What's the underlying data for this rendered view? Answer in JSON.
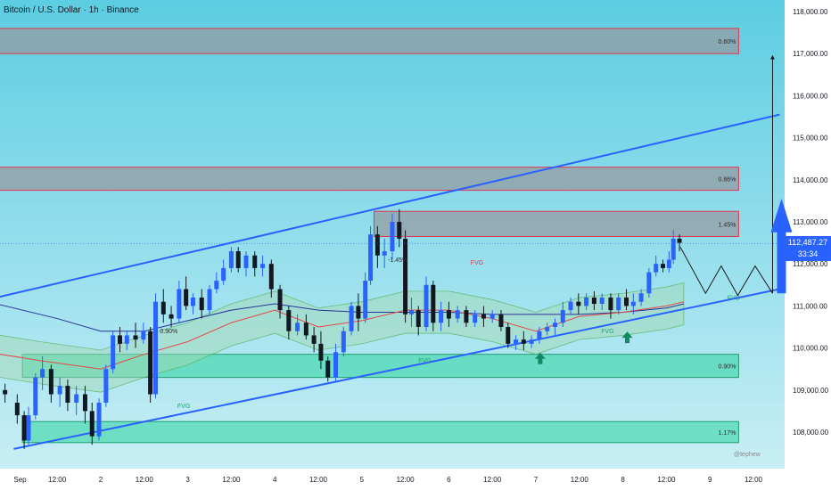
{
  "header": {
    "title": "Bitcoin / U.S. Dollar · 1h · Binance"
  },
  "price_tag": {
    "price": "112,487.27",
    "countdown": "33:34"
  },
  "watermark": "@tephew",
  "colors": {
    "background": "#58c8e0",
    "up_candle": "#2962ff",
    "down_candle": "#131722",
    "channel_line": "#2962ff",
    "resistance_zone": "#9598a1",
    "resistance_border": "#e0364a",
    "support_zone": "#2bd69c",
    "cloud": "#a5d8b0",
    "ma_blue": "#283593",
    "ma_red": "#e34a4a",
    "projection_arrow": "#2962ff"
  },
  "chart_data": {
    "type": "candlestick",
    "title": "Bitcoin / U.S. Dollar · 1h · Binance",
    "ylim": [
      107400,
      118400
    ],
    "y_ticks": [
      108000,
      109000,
      110000,
      111000,
      112000,
      113000,
      114000,
      115000,
      116000,
      117000,
      118000
    ],
    "y_tick_labels": [
      "108,000.00",
      "109,000.00",
      "110,000.00",
      "111,000.00",
      "112,000.00",
      "113,000.00",
      "114,000.00",
      "115,000.00",
      "116,000.00",
      "117,000.00",
      "118,000.00"
    ],
    "x_ticks": [
      {
        "label": "Sep",
        "day": 0.0
      },
      {
        "label": "12:00",
        "day": 0.5
      },
      {
        "label": "2",
        "day": 1.0
      },
      {
        "label": "12:00",
        "day": 1.5
      },
      {
        "label": "3",
        "day": 2.0
      },
      {
        "label": "12:00",
        "day": 2.5
      },
      {
        "label": "4",
        "day": 3.0
      },
      {
        "label": "12:00",
        "day": 3.5
      },
      {
        "label": "5",
        "day": 4.0
      },
      {
        "label": "12:00",
        "day": 4.5
      },
      {
        "label": "6",
        "day": 5.0
      },
      {
        "label": "12:00",
        "day": 5.5
      },
      {
        "label": "7",
        "day": 6.0
      },
      {
        "label": "12:00",
        "day": 6.5
      },
      {
        "label": "8",
        "day": 7.0
      },
      {
        "label": "12:00",
        "day": 7.5
      },
      {
        "label": "9",
        "day": 8.0
      },
      {
        "label": "12:00",
        "day": 8.5
      }
    ],
    "candles": [
      {
        "day": -0.1,
        "o": 109000,
        "h": 109150,
        "c": 108900,
        "l": 108700
      },
      {
        "day": 0.04,
        "o": 108700,
        "h": 108900,
        "c": 108400,
        "l": 108200
      },
      {
        "day": 0.12,
        "o": 108400,
        "h": 108500,
        "c": 107800,
        "l": 107600
      },
      {
        "day": 0.17,
        "o": 107800,
        "h": 108600,
        "c": 108400,
        "l": 107700
      },
      {
        "day": 0.25,
        "o": 108400,
        "h": 109400,
        "c": 109300,
        "l": 108300
      },
      {
        "day": 0.33,
        "o": 109300,
        "h": 109800,
        "c": 109500,
        "l": 109000
      },
      {
        "day": 0.43,
        "o": 109500,
        "h": 109600,
        "c": 108900,
        "l": 108700
      },
      {
        "day": 0.53,
        "o": 108900,
        "h": 109300,
        "c": 109100,
        "l": 108600
      },
      {
        "day": 0.62,
        "o": 109100,
        "h": 109250,
        "c": 108700,
        "l": 108500
      },
      {
        "day": 0.72,
        "o": 108700,
        "h": 109100,
        "c": 108900,
        "l": 108400
      },
      {
        "day": 0.82,
        "o": 108900,
        "h": 109100,
        "c": 108500,
        "l": 108200
      },
      {
        "day": 0.9,
        "o": 108500,
        "h": 108700,
        "c": 107900,
        "l": 107700
      },
      {
        "day": 0.98,
        "o": 107900,
        "h": 108800,
        "c": 108700,
        "l": 107800
      },
      {
        "day": 1.06,
        "o": 108700,
        "h": 109600,
        "c": 109500,
        "l": 108600
      },
      {
        "day": 1.14,
        "o": 109500,
        "h": 110400,
        "c": 110300,
        "l": 109400
      },
      {
        "day": 1.22,
        "o": 110300,
        "h": 110500,
        "c": 110100,
        "l": 109900
      },
      {
        "day": 1.3,
        "o": 110100,
        "h": 110400,
        "c": 110300,
        "l": 109950
      },
      {
        "day": 1.4,
        "o": 110300,
        "h": 110600,
        "c": 110200,
        "l": 110000
      },
      {
        "day": 1.49,
        "o": 110200,
        "h": 110600,
        "c": 110400,
        "l": 110100
      },
      {
        "day": 1.57,
        "o": 110400,
        "h": 110500,
        "c": 108900,
        "l": 108700
      },
      {
        "day": 1.63,
        "o": 108900,
        "h": 111300,
        "c": 111100,
        "l": 108800
      },
      {
        "day": 1.72,
        "o": 111100,
        "h": 111400,
        "c": 110800,
        "l": 110600
      },
      {
        "day": 1.81,
        "o": 110800,
        "h": 111000,
        "c": 110700,
        "l": 110500
      },
      {
        "day": 1.9,
        "o": 110700,
        "h": 111600,
        "c": 111400,
        "l": 110600
      },
      {
        "day": 1.98,
        "o": 111400,
        "h": 111700,
        "c": 111000,
        "l": 110900
      },
      {
        "day": 2.06,
        "o": 111000,
        "h": 111300,
        "c": 111200,
        "l": 110800
      },
      {
        "day": 2.16,
        "o": 111200,
        "h": 111400,
        "c": 110900,
        "l": 110700
      },
      {
        "day": 2.25,
        "o": 110900,
        "h": 111500,
        "c": 111400,
        "l": 110800
      },
      {
        "day": 2.33,
        "o": 111400,
        "h": 111800,
        "c": 111600,
        "l": 111300
      },
      {
        "day": 2.41,
        "o": 111600,
        "h": 112100,
        "c": 111900,
        "l": 111500
      },
      {
        "day": 2.5,
        "o": 111900,
        "h": 112400,
        "c": 112300,
        "l": 111800
      },
      {
        "day": 2.58,
        "o": 112300,
        "h": 112400,
        "c": 111900,
        "l": 111800
      },
      {
        "day": 2.67,
        "o": 111900,
        "h": 112300,
        "c": 112200,
        "l": 111700
      },
      {
        "day": 2.77,
        "o": 112200,
        "h": 112300,
        "c": 111900,
        "l": 111700
      },
      {
        "day": 2.86,
        "o": 111900,
        "h": 112200,
        "c": 112000,
        "l": 111700
      },
      {
        "day": 2.96,
        "o": 112000,
        "h": 112100,
        "c": 111400,
        "l": 111200
      },
      {
        "day": 3.06,
        "o": 111400,
        "h": 111500,
        "c": 110900,
        "l": 110700
      },
      {
        "day": 3.16,
        "o": 110900,
        "h": 111000,
        "c": 110400,
        "l": 110200
      },
      {
        "day": 3.26,
        "o": 110400,
        "h": 110800,
        "c": 110600,
        "l": 110300
      },
      {
        "day": 3.36,
        "o": 110600,
        "h": 110800,
        "c": 110300,
        "l": 110200
      },
      {
        "day": 3.45,
        "o": 110300,
        "h": 110500,
        "c": 110100,
        "l": 109900
      },
      {
        "day": 3.53,
        "o": 110100,
        "h": 110400,
        "c": 109700,
        "l": 109500
      },
      {
        "day": 3.61,
        "o": 109700,
        "h": 109800,
        "c": 109300,
        "l": 109200
      },
      {
        "day": 3.7,
        "o": 109300,
        "h": 110100,
        "c": 109900,
        "l": 109200
      },
      {
        "day": 3.79,
        "o": 109900,
        "h": 110500,
        "c": 110400,
        "l": 109800
      },
      {
        "day": 3.88,
        "o": 110400,
        "h": 111100,
        "c": 111000,
        "l": 110300
      },
      {
        "day": 3.96,
        "o": 111000,
        "h": 111300,
        "c": 110700,
        "l": 110400
      },
      {
        "day": 4.04,
        "o": 110700,
        "h": 111800,
        "c": 111600,
        "l": 110600
      },
      {
        "day": 4.1,
        "o": 111600,
        "h": 112900,
        "c": 112700,
        "l": 111500
      },
      {
        "day": 4.18,
        "o": 112700,
        "h": 112900,
        "c": 112200,
        "l": 111900
      },
      {
        "day": 4.26,
        "o": 112200,
        "h": 112600,
        "c": 112300,
        "l": 111900
      },
      {
        "day": 4.35,
        "o": 112300,
        "h": 113200,
        "c": 113000,
        "l": 112100
      },
      {
        "day": 4.43,
        "o": 113000,
        "h": 113300,
        "c": 112600,
        "l": 112400
      },
      {
        "day": 4.5,
        "o": 112600,
        "h": 112800,
        "c": 110800,
        "l": 110600
      },
      {
        "day": 4.57,
        "o": 110800,
        "h": 111200,
        "c": 110900,
        "l": 110500
      },
      {
        "day": 4.65,
        "o": 110900,
        "h": 111000,
        "c": 110500,
        "l": 110300
      },
      {
        "day": 4.74,
        "o": 110500,
        "h": 111700,
        "c": 111500,
        "l": 110400
      },
      {
        "day": 4.82,
        "o": 111500,
        "h": 111600,
        "c": 110600,
        "l": 110400
      },
      {
        "day": 4.91,
        "o": 110600,
        "h": 111100,
        "c": 110900,
        "l": 110400
      },
      {
        "day": 5.0,
        "o": 110900,
        "h": 111100,
        "c": 110700,
        "l": 110500
      },
      {
        "day": 5.1,
        "o": 110700,
        "h": 111000,
        "c": 110900,
        "l": 110600
      },
      {
        "day": 5.2,
        "o": 110900,
        "h": 111000,
        "c": 110600,
        "l": 110500
      },
      {
        "day": 5.3,
        "o": 110600,
        "h": 110900,
        "c": 110800,
        "l": 110500
      },
      {
        "day": 5.4,
        "o": 110800,
        "h": 111000,
        "c": 110700,
        "l": 110500
      },
      {
        "day": 5.5,
        "o": 110700,
        "h": 110900,
        "c": 110800,
        "l": 110600
      },
      {
        "day": 5.6,
        "o": 110800,
        "h": 110900,
        "c": 110500,
        "l": 110400
      },
      {
        "day": 5.68,
        "o": 110500,
        "h": 110600,
        "c": 110100,
        "l": 110000
      },
      {
        "day": 5.77,
        "o": 110100,
        "h": 110300,
        "c": 110200,
        "l": 109950
      },
      {
        "day": 5.86,
        "o": 110200,
        "h": 110400,
        "c": 110100,
        "l": 109950
      },
      {
        "day": 5.95,
        "o": 110100,
        "h": 110300,
        "c": 110200,
        "l": 110000
      },
      {
        "day": 6.04,
        "o": 110200,
        "h": 110500,
        "c": 110400,
        "l": 110100
      },
      {
        "day": 6.13,
        "o": 110400,
        "h": 110600,
        "c": 110500,
        "l": 110300
      },
      {
        "day": 6.22,
        "o": 110500,
        "h": 110700,
        "c": 110600,
        "l": 110300
      },
      {
        "day": 6.31,
        "o": 110600,
        "h": 111100,
        "c": 110900,
        "l": 110500
      },
      {
        "day": 6.4,
        "o": 110900,
        "h": 111200,
        "c": 111100,
        "l": 110800
      },
      {
        "day": 6.49,
        "o": 111100,
        "h": 111300,
        "c": 111000,
        "l": 110800
      },
      {
        "day": 6.58,
        "o": 111000,
        "h": 111300,
        "c": 111200,
        "l": 110900
      },
      {
        "day": 6.67,
        "o": 111200,
        "h": 111350,
        "c": 111050,
        "l": 110900
      },
      {
        "day": 6.76,
        "o": 111050,
        "h": 111300,
        "c": 111200,
        "l": 110900
      },
      {
        "day": 6.86,
        "o": 111200,
        "h": 111300,
        "c": 110900,
        "l": 110700
      },
      {
        "day": 6.95,
        "o": 110900,
        "h": 111300,
        "c": 111200,
        "l": 110800
      },
      {
        "day": 7.04,
        "o": 111200,
        "h": 111400,
        "c": 111000,
        "l": 110900
      },
      {
        "day": 7.12,
        "o": 111000,
        "h": 111300,
        "c": 111100,
        "l": 110800
      },
      {
        "day": 7.21,
        "o": 111100,
        "h": 111400,
        "c": 111300,
        "l": 111000
      },
      {
        "day": 7.3,
        "o": 111300,
        "h": 111900,
        "c": 111800,
        "l": 111200
      },
      {
        "day": 7.38,
        "o": 111800,
        "h": 112200,
        "c": 112000,
        "l": 111700
      },
      {
        "day": 7.46,
        "o": 112000,
        "h": 112100,
        "c": 111900,
        "l": 111800
      },
      {
        "day": 7.53,
        "o": 111900,
        "h": 112300,
        "c": 112100,
        "l": 111800
      },
      {
        "day": 7.58,
        "o": 112100,
        "h": 112800,
        "c": 112600,
        "l": 112000
      },
      {
        "day": 7.65,
        "o": 112600,
        "h": 112700,
        "c": 112500,
        "l": 112300
      }
    ],
    "moving_averages": [
      {
        "color": "blue",
        "points": [
          [
            -0.3,
            111100
          ],
          [
            0.5,
            110700
          ],
          [
            1.0,
            110400
          ],
          [
            1.5,
            110400
          ],
          [
            2.0,
            110650
          ],
          [
            2.5,
            110900
          ],
          [
            3.0,
            111050
          ],
          [
            3.5,
            110900
          ],
          [
            4.0,
            110850
          ],
          [
            4.5,
            110850
          ],
          [
            5.0,
            110850
          ],
          [
            5.5,
            110800
          ],
          [
            6.0,
            110800
          ],
          [
            6.5,
            110800
          ],
          [
            7.0,
            110850
          ],
          [
            7.5,
            110950
          ],
          [
            7.7,
            111050
          ]
        ]
      },
      {
        "color": "red",
        "points": [
          [
            -0.3,
            109900
          ],
          [
            0.3,
            109700
          ],
          [
            1.0,
            109500
          ],
          [
            1.5,
            109850
          ],
          [
            2.0,
            110150
          ],
          [
            2.5,
            110600
          ],
          [
            3.0,
            110900
          ],
          [
            3.5,
            110500
          ],
          [
            4.0,
            110650
          ],
          [
            4.5,
            110900
          ],
          [
            5.0,
            110900
          ],
          [
            5.5,
            110700
          ],
          [
            6.0,
            110400
          ],
          [
            6.5,
            110750
          ],
          [
            7.0,
            110850
          ],
          [
            7.5,
            111000
          ],
          [
            7.7,
            111100
          ]
        ]
      }
    ],
    "channel": {
      "upper": {
        "start": {
          "day": -0.3,
          "value": 111150
        },
        "end": {
          "day": 8.8,
          "value": 115550
        }
      },
      "lower": {
        "start": {
          "day": 0.0,
          "value": 107600
        },
        "end": {
          "day": 8.8,
          "value": 111400
        }
      }
    },
    "zones": [
      {
        "label": "0.60%",
        "kind": "resistance",
        "from": 117000,
        "to": 117600,
        "start_day": -0.3,
        "end_day": 8.33
      },
      {
        "label": "0.86%",
        "kind": "resistance",
        "from": 113750,
        "to": 114300,
        "start_day": -0.3,
        "end_day": 8.33
      },
      {
        "label": "1.45%",
        "kind": "resistance",
        "from": 112650,
        "to": 113250,
        "start_day": 4.14,
        "end_day": 8.33
      },
      {
        "label": "0.90%",
        "kind": "support",
        "from": 109300,
        "to": 109850,
        "start_day": 0.1,
        "end_day": 8.33
      },
      {
        "label": "1.17%",
        "kind": "support",
        "from": 107750,
        "to": 108250,
        "start_day": 0.1,
        "end_day": 8.33
      }
    ],
    "annotations": [
      "FVG",
      "FVG",
      "FVG",
      "FVG",
      "-1.45%",
      "0.90%"
    ],
    "projection": {
      "path": [
        [
          7.66,
          112400
        ],
        [
          7.95,
          111300
        ],
        [
          8.13,
          111950
        ],
        [
          8.32,
          111250
        ],
        [
          8.52,
          111950
        ],
        [
          8.72,
          111300
        ]
      ],
      "target": 117000
    },
    "current_price": 112487.27
  }
}
